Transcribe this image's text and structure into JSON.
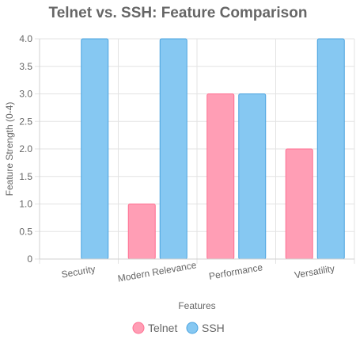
{
  "chart_data": {
    "type": "bar",
    "title": "Telnet vs. SSH: Feature Comparison",
    "xlabel": "Features",
    "ylabel": "Feature Strength (0-4)",
    "categories": [
      "Security",
      "Modern Relevance",
      "Performance",
      "Versatility"
    ],
    "series": [
      {
        "name": "Telnet",
        "values": [
          0,
          1,
          3,
          2
        ],
        "color": "#ff9eb5",
        "border": "#ff6f91"
      },
      {
        "name": "SSH",
        "values": [
          4,
          4,
          3,
          4
        ],
        "color": "#86c8f2",
        "border": "#4aa3df"
      }
    ],
    "ylim": [
      0,
      4
    ],
    "yticks": [
      "0",
      "0.5",
      "1.0",
      "1.5",
      "2.0",
      "2.5",
      "3.0",
      "3.5",
      "4.0"
    ],
    "grid": true,
    "legend_position": "bottom"
  }
}
